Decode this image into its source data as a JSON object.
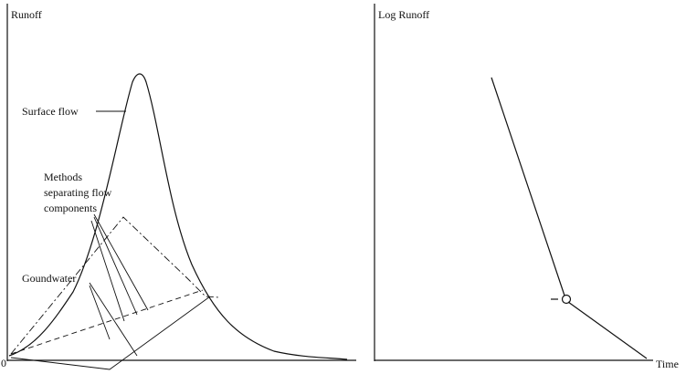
{
  "left_panel": {
    "y_axis_label": "Runoff",
    "origin_label": "0",
    "surface_flow_label": "Surface flow",
    "methods_label": [
      "Methods",
      "separating flow",
      "components"
    ],
    "groundwater_label": "Goundwater"
  },
  "right_panel": {
    "y_axis_label": "Log Runoff",
    "x_axis_label": "Time"
  }
}
